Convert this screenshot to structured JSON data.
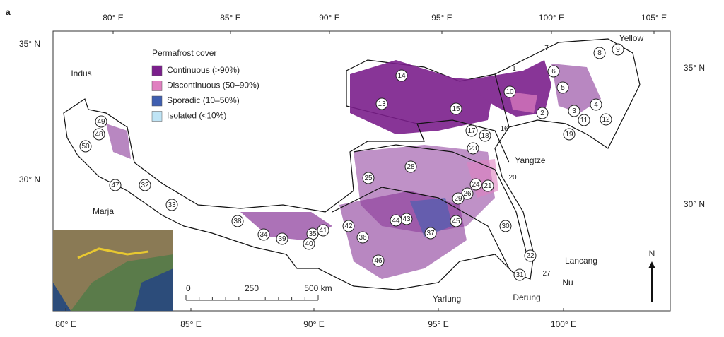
{
  "panel": "a",
  "lon_top": [
    "80° E",
    "85° E",
    "90° E",
    "95° E",
    "100° E",
    "105° E"
  ],
  "lon_bottom": [
    "80° E",
    "85° E",
    "90° E",
    "95° E",
    "100° E"
  ],
  "lat_left": [
    "35° N",
    "30° N"
  ],
  "lat_right": [
    "35° N",
    "30° N"
  ],
  "legend": {
    "title": "Permafrost cover",
    "items": [
      {
        "label": "Continuous (>90%)",
        "color": "#7b1f8c"
      },
      {
        "label": "Discontinuous (50–90%)",
        "color": "#e080c0"
      },
      {
        "label": "Sporadic (10–50%)",
        "color": "#3f5fb0"
      },
      {
        "label": "Isolated (<10%)",
        "color": "#bfe4f5"
      }
    ]
  },
  "rivers": [
    "Indus",
    "Yellow",
    "Yangtze",
    "Marja",
    "Lancang",
    "Nu",
    "Derung",
    "Yarlung"
  ],
  "stations": [
    "1",
    "2",
    "3",
    "4",
    "5",
    "6",
    "7",
    "8",
    "9",
    "10",
    "11",
    "12",
    "13",
    "14",
    "15",
    "16",
    "17",
    "18",
    "19",
    "20",
    "21",
    "22",
    "23",
    "24",
    "25",
    "26",
    "27",
    "28",
    "29",
    "30",
    "31",
    "32",
    "33",
    "34",
    "35",
    "36",
    "37",
    "38",
    "39",
    "40",
    "41",
    "42",
    "43",
    "44",
    "45",
    "46",
    "47",
    "48",
    "49",
    "50"
  ],
  "scale": [
    "0",
    "250",
    "500 km"
  ],
  "north": "N"
}
